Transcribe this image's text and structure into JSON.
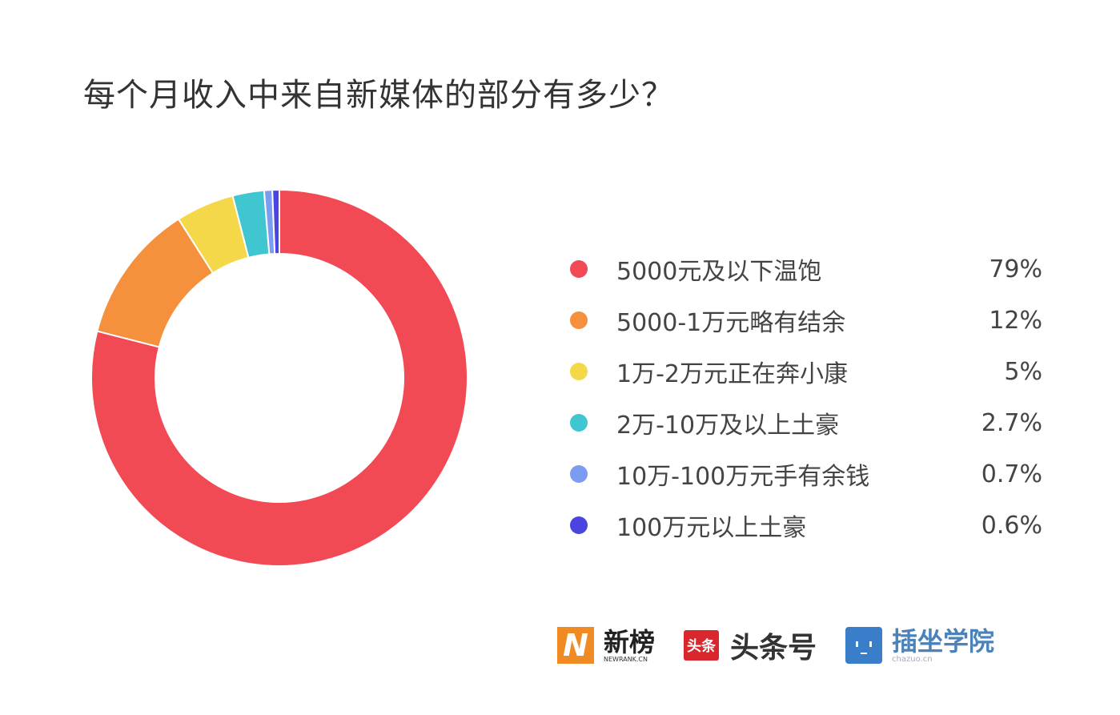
{
  "chart_data": {
    "type": "pie",
    "donut": true,
    "title": "每个月收入中来自新媒体的部分有多少？",
    "legend_position": "right",
    "categories": [
      "5000元及以下温饱",
      "5000-1万元略有结余",
      "1万-2万元正在奔小康",
      "2万-10万及以上土豪",
      "10万-100万元手有余钱",
      "100万元以上土豪"
    ],
    "values": [
      79,
      12,
      5,
      2.7,
      0.7,
      0.6
    ],
    "value_labels": [
      "79%",
      "12%",
      "5%",
      "2.7%",
      "0.7%",
      "0.6%"
    ],
    "colors": [
      "#f24a55",
      "#f5903d",
      "#f5d84a",
      "#3fc6d0",
      "#7b9cf0",
      "#4a45e0"
    ]
  },
  "logos": {
    "newrank": {
      "name": "新榜",
      "sub": "NEWRANK.CN"
    },
    "toutiao": {
      "mark": "头条",
      "name": "头条号"
    },
    "chazuo": {
      "name": "插坐学院",
      "sub": "chazuo.cn"
    }
  }
}
